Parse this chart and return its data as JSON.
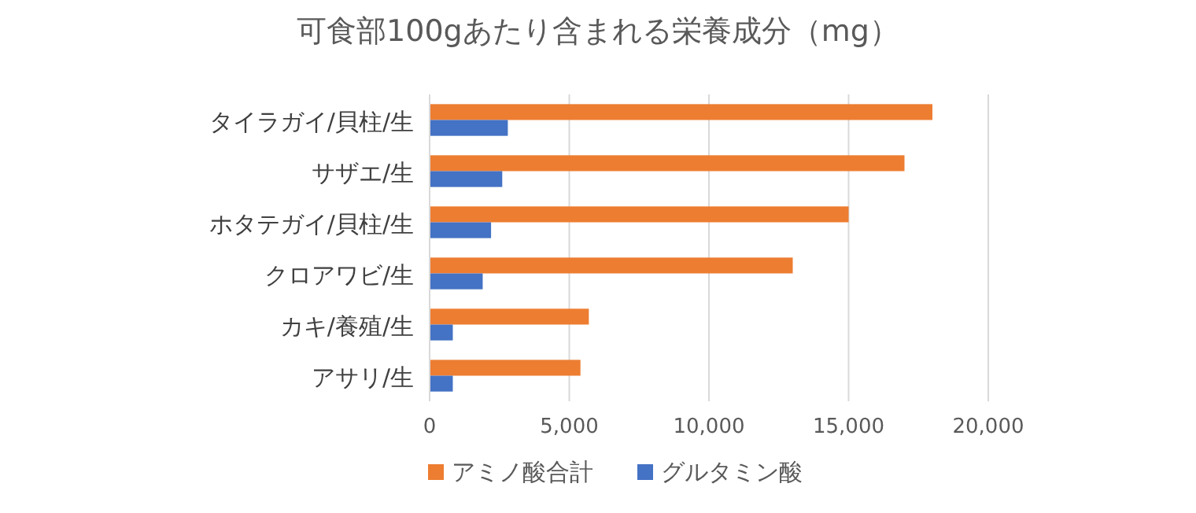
{
  "chart_data": {
    "type": "bar",
    "orientation": "horizontal",
    "title": "可食部100gあたり含まれる栄養成分（mg）",
    "categories": [
      "タイラガイ/貝柱/生",
      "サザエ/生",
      "ホタテガイ/貝柱/生",
      "クロアワビ/生",
      "カキ/養殖/生",
      "アサリ/生"
    ],
    "series": [
      {
        "name": "アミノ酸合計",
        "color": "#ed7d31",
        "values": [
          18000,
          17000,
          15000,
          13000,
          5700,
          5400
        ]
      },
      {
        "name": "グルタミン酸",
        "color": "#4472c4",
        "values": [
          2800,
          2600,
          2200,
          1900,
          830,
          830
        ]
      }
    ],
    "xlim": [
      0,
      20000
    ],
    "xticks": [
      {
        "value": 0,
        "label": "0"
      },
      {
        "value": 5000,
        "label": "5,000"
      },
      {
        "value": 10000,
        "label": "10,000"
      },
      {
        "value": 15000,
        "label": "15,000"
      },
      {
        "value": 20000,
        "label": "20,000"
      }
    ],
    "grid": "x",
    "legend": "bottom"
  }
}
